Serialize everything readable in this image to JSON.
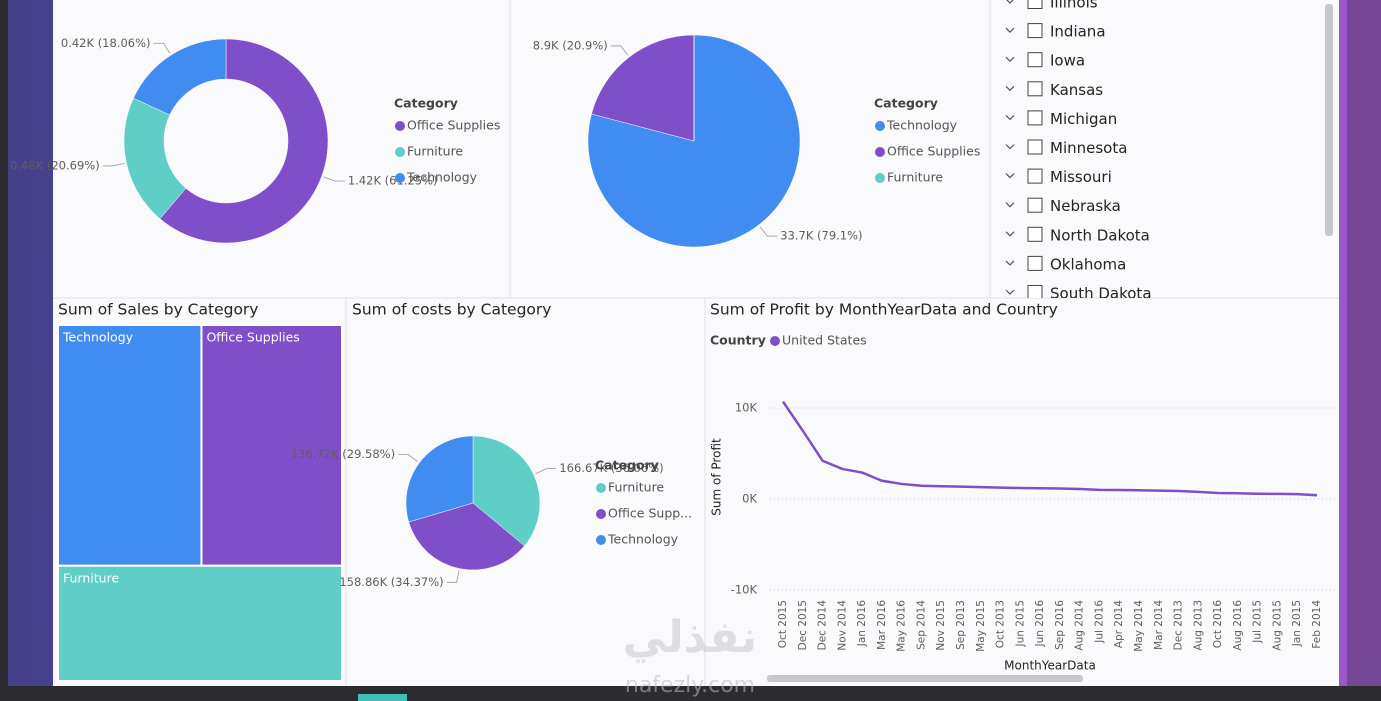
{
  "chart_data": [
    {
      "type": "donut",
      "legend_title": "Category",
      "categories": [
        "Office Supplies",
        "Furniture",
        "Technology"
      ],
      "values": [
        1420,
        480,
        420
      ],
      "value_labels": [
        "1.42K (61.25%)",
        "0.48K (20.69%)",
        "0.42K (18.06%)"
      ],
      "colors": [
        "#7f4fc9",
        "#5ecec6",
        "#418cf0"
      ]
    },
    {
      "type": "pie",
      "legend_title": "Category",
      "categories": [
        "Technology",
        "Office Supplies",
        "Furniture"
      ],
      "values": [
        33700,
        8900,
        0
      ],
      "value_labels": [
        "33.7K (79.1%)",
        "8.9K (20.9%)",
        null
      ],
      "colors": [
        "#418cf0",
        "#7f4fc9",
        "#5ecec6"
      ]
    },
    {
      "type": "treemap",
      "title": "Sum of Sales by Category",
      "categories": [
        "Technology",
        "Office Supplies",
        "Furniture"
      ],
      "values": [
        34.3,
        33.6,
        32.5
      ],
      "colors": [
        "#418cf0",
        "#7f4fc9",
        "#5ecec6"
      ]
    },
    {
      "type": "pie",
      "title": "Sum of costs by Category",
      "legend_title": "Category",
      "categories": [
        "Furniture",
        "Office Supp...",
        "Technology"
      ],
      "values": [
        166670,
        158860,
        136720
      ],
      "value_labels": [
        "166.67K (36.06%)",
        "158.86K (34.37%)",
        "136.72K (29.58%)"
      ],
      "colors": [
        "#5ecec6",
        "#7f4fc9",
        "#418cf0"
      ]
    },
    {
      "type": "line",
      "title": "Sum of Profit by MonthYearData and Country",
      "legend_title": "Country",
      "x_label": "MonthYearData",
      "y_label": "Sum of Profit",
      "categories": [
        "Oct 2015",
        "Dec 2015",
        "Dec 2014",
        "Nov 2014",
        "Jan 2016",
        "Mar 2016",
        "May 2016",
        "Sep 2014",
        "Nov 2015",
        "Sep 2013",
        "May 2015",
        "Oct 2013",
        "Jun 2015",
        "Jun 2016",
        "Sep 2016",
        "Aug 2014",
        "Jul 2016",
        "Apr 2014",
        "May 2014",
        "Mar 2014",
        "Dec 2013",
        "Aug 2013",
        "Oct 2016",
        "Aug 2016",
        "Jul 2015",
        "Aug 2015",
        "Jan 2015",
        "Feb 2014"
      ],
      "series": [
        {
          "name": "United States",
          "color": "#7f4fc9",
          "values": [
            10700,
            7500,
            4200,
            3300,
            2900,
            2000,
            1650,
            1450,
            1400,
            1350,
            1300,
            1250,
            1200,
            1180,
            1150,
            1100,
            1000,
            980,
            950,
            920,
            880,
            780,
            660,
            620,
            570,
            560,
            530,
            400
          ]
        }
      ],
      "ylim": [
        -11000,
        12000
      ],
      "yticks": [
        {
          "value": -10000,
          "label": "-10K"
        },
        {
          "value": 0,
          "label": "0K"
        },
        {
          "value": 10000,
          "label": "10K"
        }
      ],
      "grid": true
    }
  ],
  "slicer": {
    "items": [
      "Illinois",
      "Indiana",
      "Iowa",
      "Kansas",
      "Michigan",
      "Minnesota",
      "Missouri",
      "Nebraska",
      "North Dakota",
      "Oklahoma",
      "South Dakota"
    ]
  },
  "watermark": {
    "arabic": "نفذلي",
    "latin": "nafezly.com"
  }
}
